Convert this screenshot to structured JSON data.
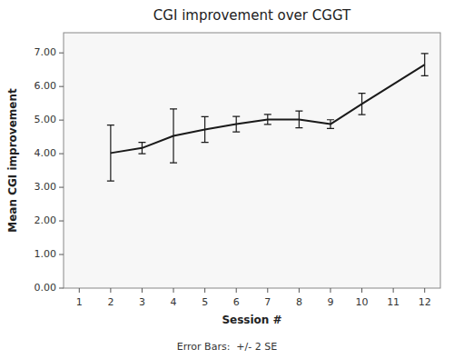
{
  "chart_data": {
    "type": "line",
    "title": "CGI improvement over CGGT",
    "xlabel": "Session #",
    "ylabel": "Mean CGI improvement",
    "annotations": [
      "Error Bars:  +/- 2 SE"
    ],
    "x": [
      2,
      3,
      4,
      5,
      6,
      7,
      8,
      9,
      10,
      12
    ],
    "values": [
      4.02,
      4.17,
      4.53,
      4.72,
      4.88,
      5.02,
      5.02,
      4.88,
      5.48,
      6.65
    ],
    "yerr": [
      0.83,
      0.17,
      0.8,
      0.38,
      0.23,
      0.15,
      0.25,
      0.13,
      0.32,
      0.33
    ],
    "color": "#1a1a1a",
    "xlim": [
      0.5,
      12.5
    ],
    "ylim": [
      0,
      7.6
    ],
    "xticks": [
      1,
      2,
      3,
      4,
      5,
      6,
      7,
      8,
      9,
      10,
      11,
      12
    ],
    "yticks": [
      {
        "value": 0,
        "label": "0.00"
      },
      {
        "value": 1,
        "label": "1.00"
      },
      {
        "value": 2,
        "label": "2.00"
      },
      {
        "value": 3,
        "label": "3.00"
      },
      {
        "value": 4,
        "label": "4.00"
      },
      {
        "value": 5,
        "label": "5.00"
      },
      {
        "value": 6,
        "label": "6.00"
      },
      {
        "value": 7,
        "label": "7.00"
      }
    ],
    "grid": false
  }
}
